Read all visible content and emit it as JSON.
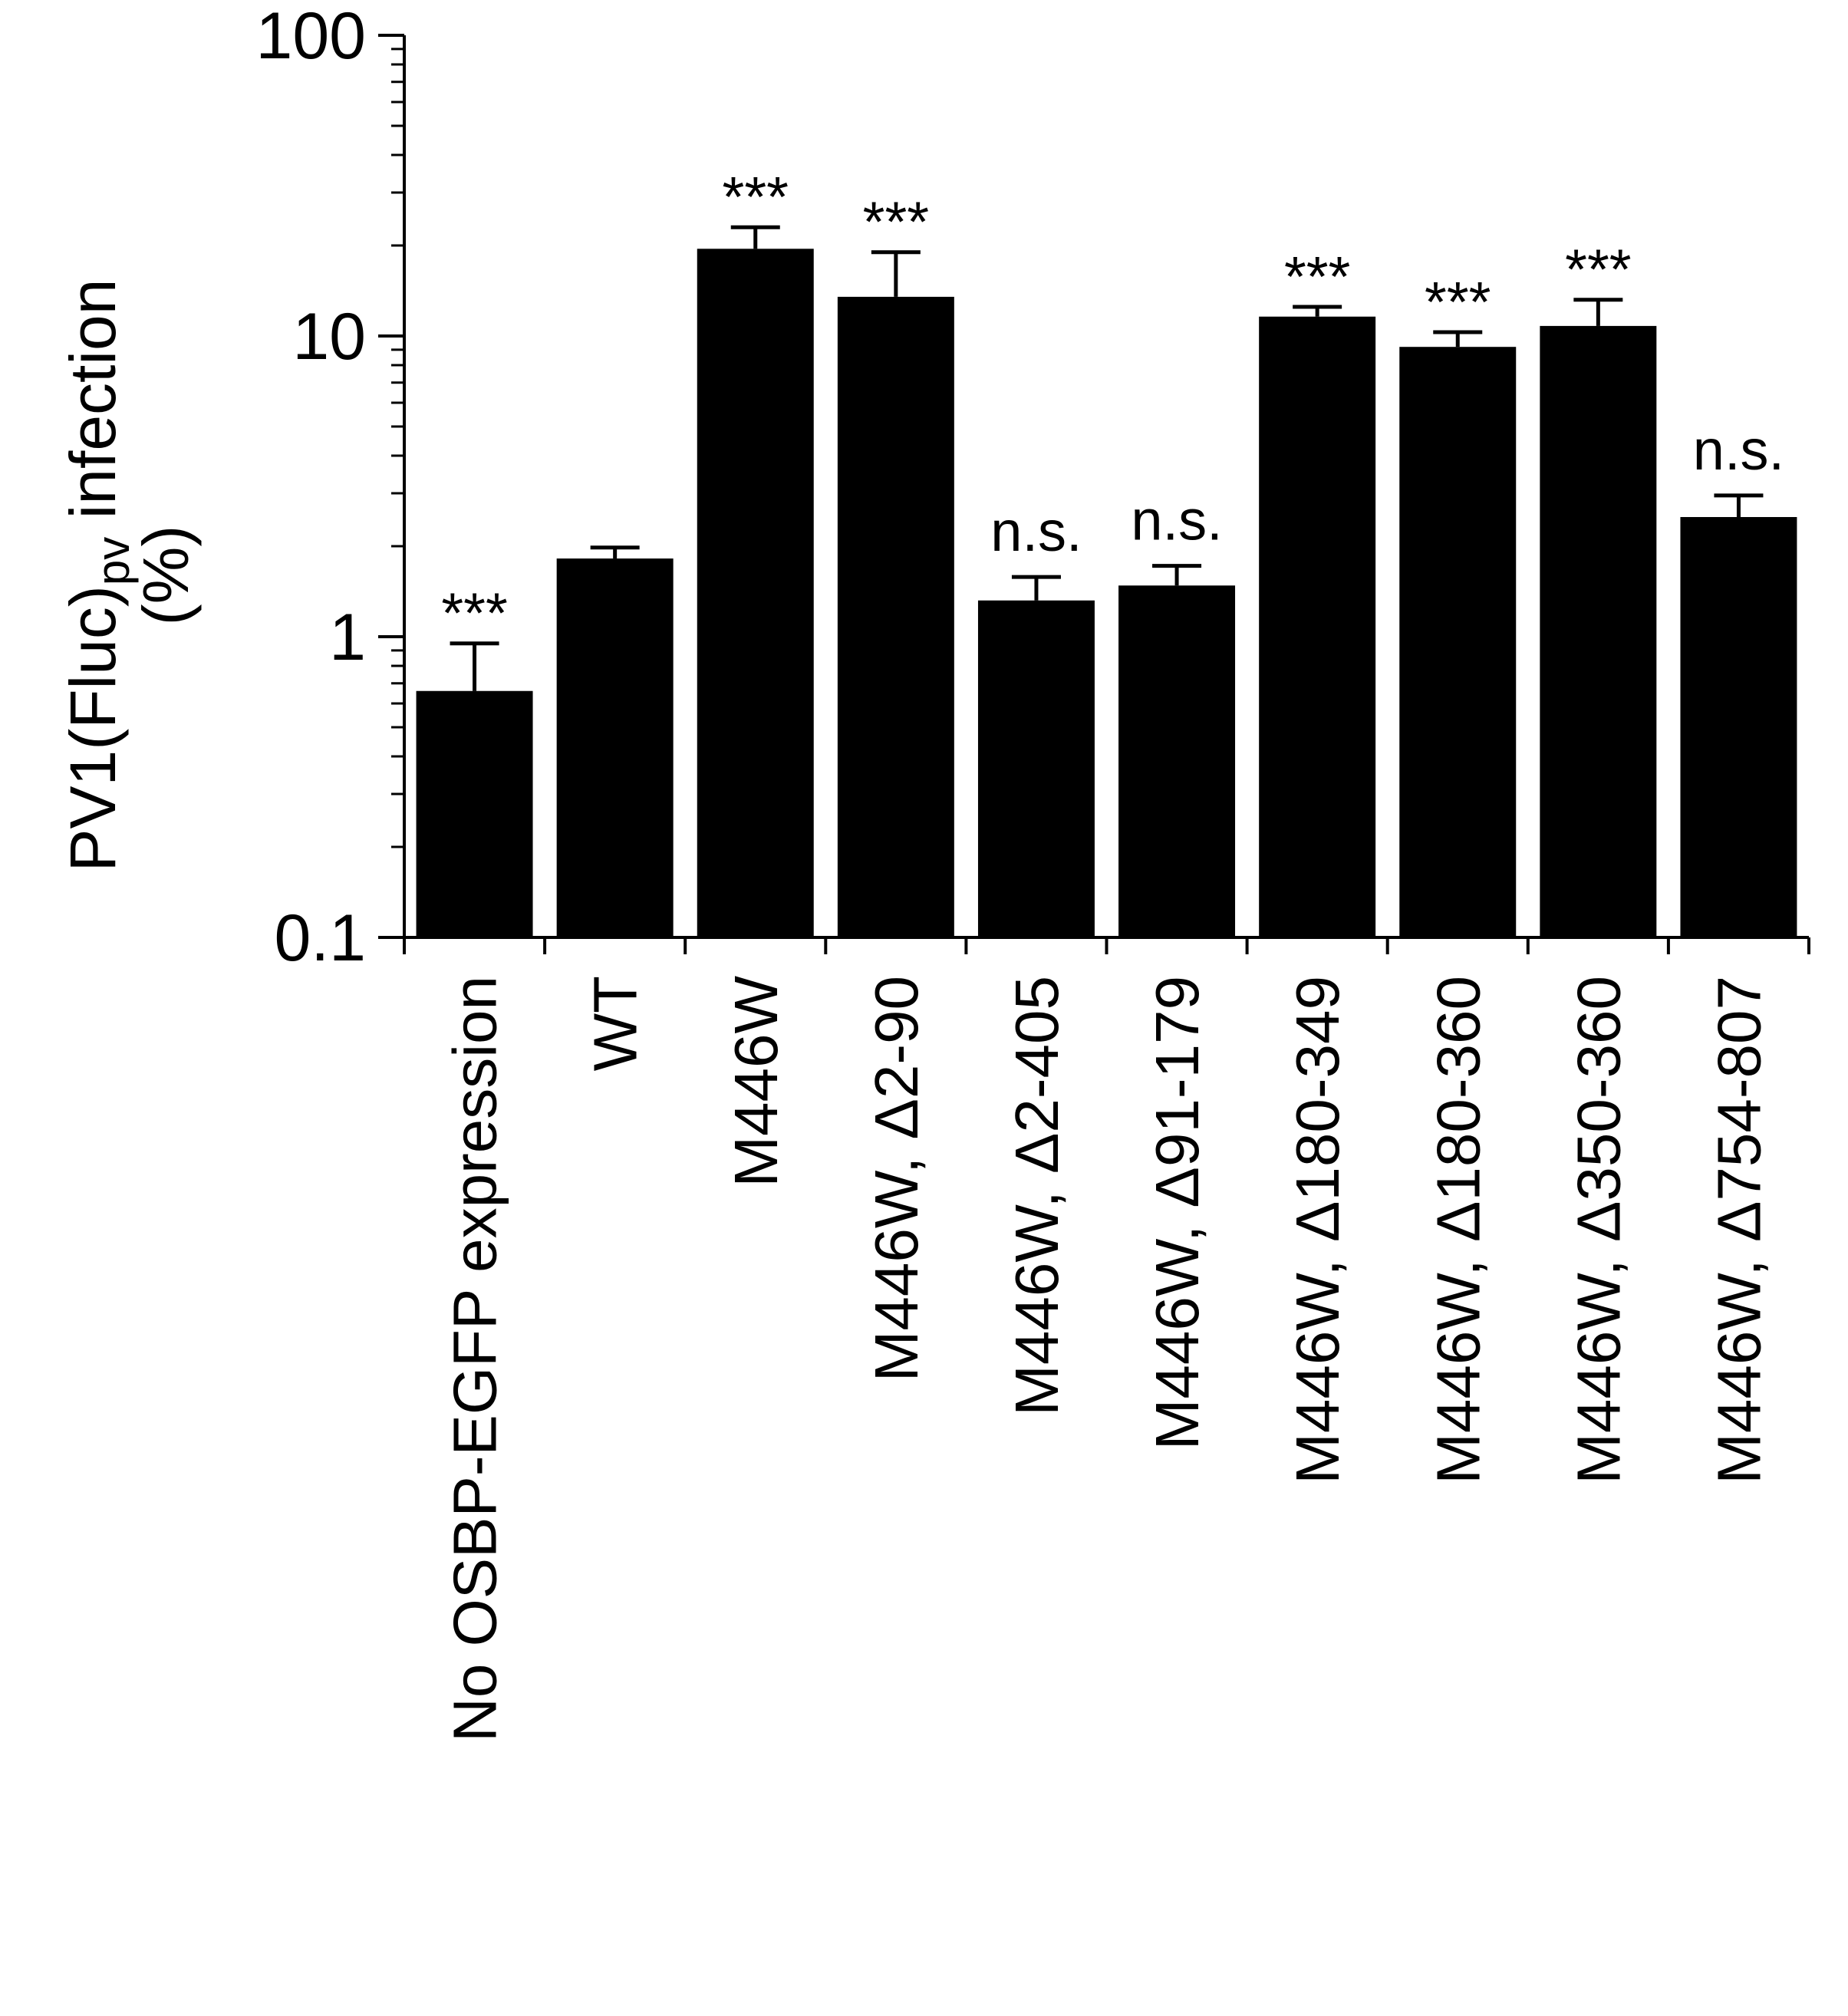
{
  "chart_data": {
    "type": "bar",
    "ylabel": {
      "line1_pre": "PV1(Fluc)",
      "line1_sub": "pv",
      "line1_post": " infection",
      "line2": "(%)"
    },
    "yscale": "log",
    "ylim": [
      0.1,
      100
    ],
    "yticks": [
      0.1,
      1,
      10,
      100
    ],
    "ytick_labels": [
      "0.1",
      "1",
      "10",
      "100"
    ],
    "categories": [
      "No OSBP-EGFP expression",
      "WT",
      "M446W",
      "M446W, Δ2-90",
      "M446W, Δ2-405",
      "M446W, Δ91-179",
      "M446W, Δ180-349",
      "M446W, Δ180-360",
      "M446W, Δ350-360",
      "M446W, Δ754-807"
    ],
    "values": [
      0.66,
      1.82,
      19.5,
      13.5,
      1.32,
      1.48,
      11.6,
      9.2,
      10.8,
      2.5
    ],
    "error_upper": [
      0.95,
      1.98,
      23.0,
      19.0,
      1.58,
      1.72,
      12.5,
      10.3,
      13.2,
      2.95
    ],
    "significance": [
      "***",
      "",
      "***",
      "***",
      "n.s.",
      "n.s.",
      "***",
      "***",
      "***",
      "n.s."
    ],
    "bar_color": "#000000",
    "grid": false,
    "legend": "none"
  }
}
